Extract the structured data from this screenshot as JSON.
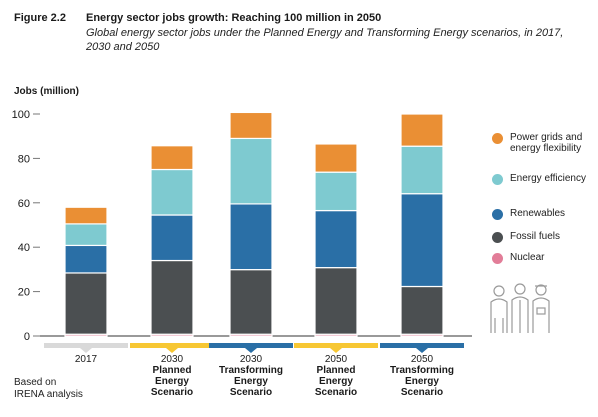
{
  "header": {
    "figure_label": "Figure 2.2",
    "title": "Energy sector jobs growth: Reaching 100 million in 2050",
    "subtitle": "Global energy sector jobs under the Planned Energy and Transforming Energy scenarios, in 2017, 2030 and 2050"
  },
  "note": {
    "line1": "Based on",
    "line2": "IRENA analysis"
  },
  "colors": {
    "nuclear": "#e27d98",
    "fossil": "#4b4f51",
    "renewables": "#2a6fa6",
    "efficiency": "#7ecad0",
    "grids": "#ea8f34",
    "baseline_2017": "#d9d9d9",
    "planned": "#f7c733",
    "transforming": "#2a6fa6"
  },
  "legend": [
    {
      "key": "grids",
      "label": "Power grids and energy flexibility"
    },
    {
      "key": "efficiency",
      "label": "Energy efficiency"
    },
    {
      "key": "renewables",
      "label": "Renewables"
    },
    {
      "key": "fossil",
      "label": "Fossil fuels"
    },
    {
      "key": "nuclear",
      "label": "Nuclear"
    }
  ],
  "decoration": {
    "people_icon": "group-of-workers-icon"
  },
  "chart_data": {
    "type": "bar",
    "stacked": true,
    "ylabel": "Jobs (million)",
    "ylim": [
      0,
      100
    ],
    "yticks": [
      0,
      20,
      40,
      60,
      80,
      100
    ],
    "grid": false,
    "legend_position": "right",
    "categories": [
      {
        "lines": [
          "2017"
        ],
        "scenario": "baseline"
      },
      {
        "lines": [
          "2030",
          "Planned",
          "Energy",
          "Scenario"
        ],
        "scenario": "planned"
      },
      {
        "lines": [
          "2030",
          "Transforming",
          "Energy",
          "Scenario"
        ],
        "scenario": "transforming"
      },
      {
        "lines": [
          "2050",
          "Planned",
          "Energy",
          "Scenario"
        ],
        "scenario": "planned"
      },
      {
        "lines": [
          "2050",
          "Transforming",
          "Energy",
          "Scenario"
        ],
        "scenario": "transforming"
      }
    ],
    "series": [
      {
        "name": "Nuclear",
        "key": "nuclear",
        "values": [
          0.8,
          0.8,
          0.8,
          0.8,
          0.8
        ]
      },
      {
        "name": "Fossil fuels",
        "key": "fossil",
        "values": [
          27.6,
          33.2,
          29.1,
          30.0,
          21.5
        ]
      },
      {
        "name": "Renewables",
        "key": "renewables",
        "values": [
          12.4,
          20.5,
          29.6,
          25.7,
          41.8
        ]
      },
      {
        "name": "Energy efficiency",
        "key": "efficiency",
        "values": [
          9.7,
          20.5,
          29.5,
          17.3,
          21.4
        ]
      },
      {
        "name": "Power grids and energy flexibility",
        "key": "grids",
        "values": [
          7.5,
          10.7,
          11.7,
          12.7,
          14.5
        ]
      }
    ]
  }
}
